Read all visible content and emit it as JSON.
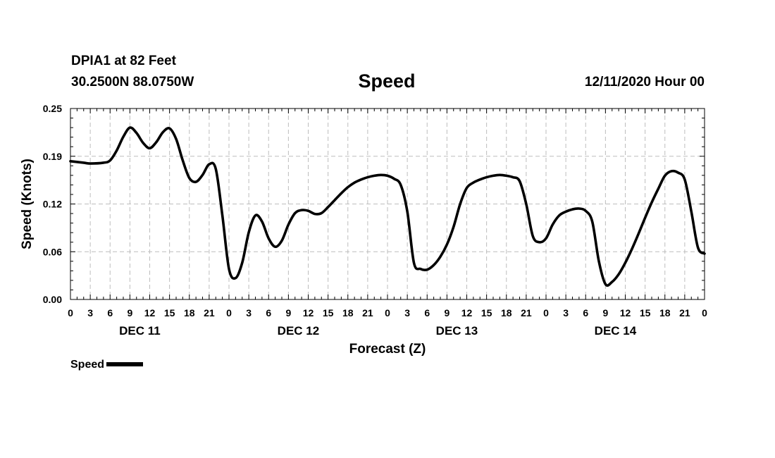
{
  "header": {
    "station": "DPIA1 at 82 Feet",
    "coords": "30.2500N 88.0750W",
    "title": "Speed",
    "issued": "12/11/2020 Hour 00"
  },
  "chart_data": {
    "type": "line",
    "title": "Speed",
    "xlabel": "Forecast (Z)",
    "ylabel": "Speed (Knots)",
    "xlim": [
      0,
      96
    ],
    "ylim": [
      0,
      0.25
    ],
    "yticks": [
      "0.00",
      "0.06",
      "0.12",
      "0.19",
      "0.25"
    ],
    "ytick_values": [
      0,
      0.0625,
      0.125,
      0.1875,
      0.25
    ],
    "xticks": [
      "0",
      "3",
      "6",
      "9",
      "12",
      "15",
      "18",
      "21",
      "0",
      "3",
      "6",
      "9",
      "12",
      "15",
      "18",
      "21",
      "0",
      "3",
      "6",
      "9",
      "12",
      "15",
      "18",
      "21",
      "0",
      "3",
      "6",
      "9",
      "12",
      "15",
      "18",
      "21",
      "0"
    ],
    "day_labels": [
      "DEC 11",
      "DEC 12",
      "DEC 13",
      "DEC 14"
    ],
    "grid": true,
    "legend": "bottom-left",
    "series": [
      {
        "name": "Speed",
        "color": "#000000",
        "x": [
          0,
          2,
          3,
          5,
          6,
          7,
          8,
          9,
          10,
          11,
          12,
          13,
          14,
          15,
          16,
          17,
          18,
          19,
          20,
          21,
          22,
          23,
          24,
          25,
          26,
          27,
          28,
          29,
          30,
          31,
          32,
          33,
          34,
          35,
          36,
          37,
          38,
          39,
          40,
          41,
          42,
          43,
          44,
          45,
          46,
          47,
          48,
          49,
          50,
          51,
          52,
          53,
          54,
          55,
          56,
          57,
          58,
          59,
          60,
          61,
          62,
          63,
          64,
          65,
          66,
          67,
          68,
          69,
          70,
          71,
          72,
          73,
          74,
          75,
          76,
          77,
          78,
          79,
          80,
          81,
          82,
          83,
          84,
          85,
          86,
          87,
          88,
          89,
          90,
          91,
          92,
          93,
          94,
          95,
          96
        ],
        "y": [
          0.181,
          0.179,
          0.178,
          0.179,
          0.182,
          0.195,
          0.213,
          0.225,
          0.218,
          0.205,
          0.198,
          0.206,
          0.219,
          0.224,
          0.21,
          0.182,
          0.159,
          0.154,
          0.163,
          0.177,
          0.171,
          0.11,
          0.04,
          0.028,
          0.048,
          0.088,
          0.11,
          0.102,
          0.08,
          0.069,
          0.077,
          0.098,
          0.113,
          0.117,
          0.116,
          0.112,
          0.113,
          0.121,
          0.13,
          0.139,
          0.147,
          0.153,
          0.157,
          0.16,
          0.162,
          0.163,
          0.162,
          0.158,
          0.15,
          0.115,
          0.048,
          0.04,
          0.039,
          0.045,
          0.056,
          0.072,
          0.095,
          0.125,
          0.146,
          0.153,
          0.157,
          0.16,
          0.162,
          0.163,
          0.162,
          0.16,
          0.155,
          0.125,
          0.083,
          0.075,
          0.08,
          0.098,
          0.11,
          0.115,
          0.118,
          0.119,
          0.116,
          0.102,
          0.05,
          0.02,
          0.023,
          0.033,
          0.048,
          0.066,
          0.086,
          0.107,
          0.127,
          0.145,
          0.162,
          0.168,
          0.166,
          0.157,
          0.115,
          0.068,
          0.06
        ]
      }
    ]
  }
}
